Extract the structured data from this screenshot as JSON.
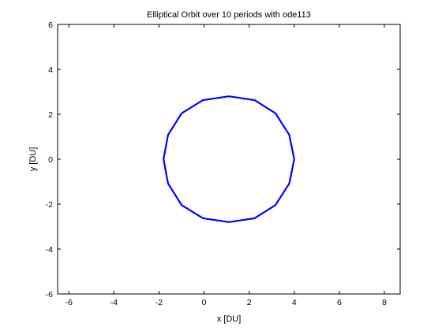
{
  "chart_data": {
    "type": "line",
    "title": "Elliptical Orbit over 10 periods with ode113",
    "xlabel": "x [DU]",
    "ylabel": "y [DU]",
    "xlim": [
      -6.5,
      8.7
    ],
    "ylim": [
      -6,
      6
    ],
    "xticks": [
      -6,
      -4,
      -2,
      0,
      2,
      4,
      6,
      8
    ],
    "yticks": [
      -6,
      -4,
      -2,
      0,
      2,
      4,
      6
    ],
    "xtick_labels": [
      "-6",
      "-4",
      "-2",
      "0",
      "2",
      "4",
      "6",
      "8"
    ],
    "ytick_labels": [
      "-6",
      "-4",
      "-2",
      "0",
      "2",
      "4",
      "6"
    ],
    "grid": false,
    "line_color": "#0000ff",
    "series": [
      {
        "x": [
          4.0,
          3.78,
          3.17,
          2.24,
          1.1,
          -0.05,
          -1.0,
          -1.6,
          -1.8,
          -1.6,
          -1.0,
          -0.05,
          1.1,
          2.24,
          3.17,
          3.78,
          4.0
        ],
        "y": [
          0.0,
          1.08,
          2.04,
          2.63,
          2.8,
          2.63,
          2.04,
          1.08,
          0.0,
          -1.08,
          -2.04,
          -2.63,
          -2.8,
          -2.63,
          -2.04,
          -1.08,
          0.0
        ]
      }
    ]
  }
}
